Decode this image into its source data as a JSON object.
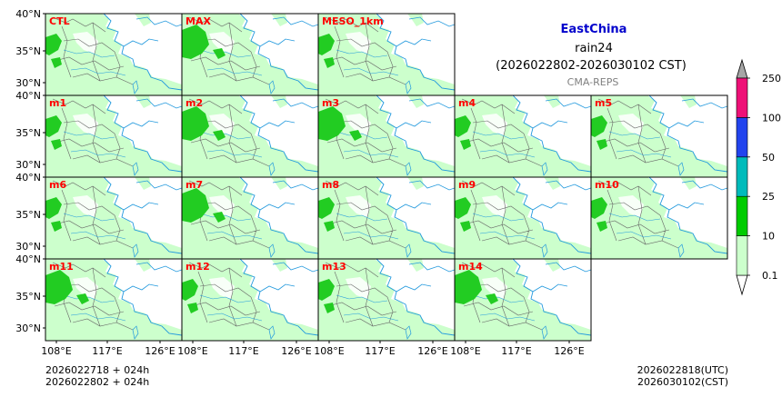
{
  "header": {
    "region": "EastChina",
    "variable": "rain24",
    "period": "(2026022802-2026030102 CST)",
    "source": "CMA-REPS"
  },
  "panels": [
    "CTL",
    "MAX",
    "MESO_1km",
    "m1",
    "m2",
    "m3",
    "m4",
    "m5",
    "m6",
    "m7",
    "m8",
    "m9",
    "m10",
    "m11",
    "m12",
    "m13",
    "m14"
  ],
  "axes": {
    "lat_ticks": [
      "40°N",
      "35°N",
      "30°N"
    ],
    "lon_ticks": [
      "108°E",
      "117°E",
      "126°E"
    ]
  },
  "colorbar": {
    "levels": [
      "0.1",
      "10",
      "25",
      "50",
      "100",
      "250"
    ],
    "colors": [
      "#ccffcc",
      "#00cc00",
      "#00bbbb",
      "#2244ee",
      "#ee1177"
    ],
    "extend_top_color": "#a6a6a6",
    "extend_bottom_color": "#ffffff"
  },
  "footer": {
    "init_utc": "2026022718  +  024h",
    "init_cst": "2026022802  +  024h",
    "valid_utc": "2026022818(UTC)",
    "valid_cst": "2026030102(CST)"
  },
  "colors": {
    "title": "#0000cc",
    "panel_label": "#ff0000",
    "source": "#808080",
    "rain_light": "#ccffcc",
    "rain_heavy": "#22cc22",
    "coast": "#2299dd",
    "border": "#000000"
  }
}
